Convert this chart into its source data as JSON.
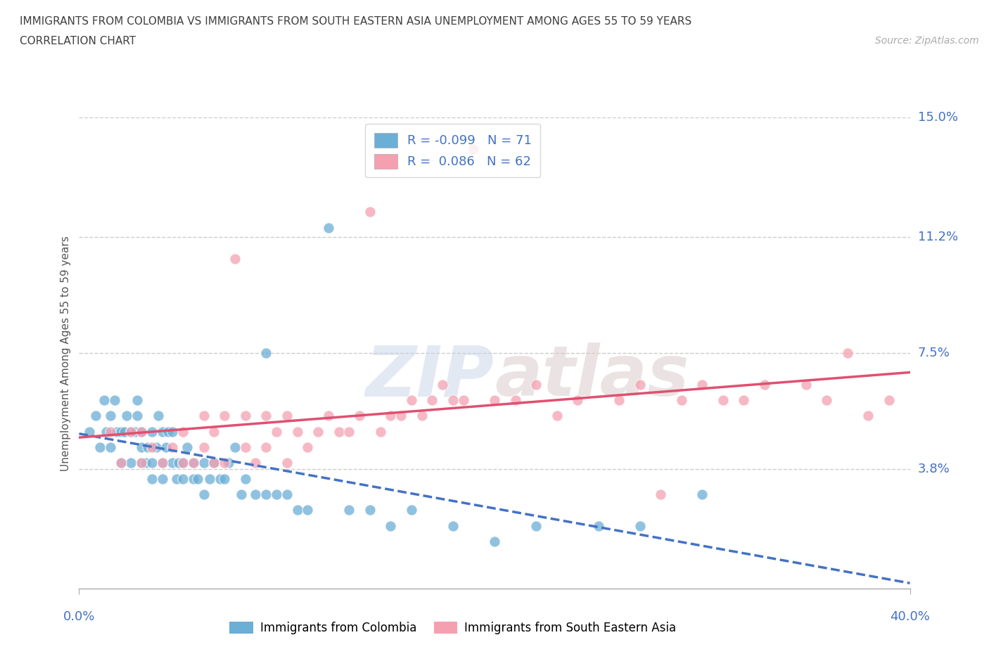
{
  "title_line1": "IMMIGRANTS FROM COLOMBIA VS IMMIGRANTS FROM SOUTH EASTERN ASIA UNEMPLOYMENT AMONG AGES 55 TO 59 YEARS",
  "title_line2": "CORRELATION CHART",
  "source": "Source: ZipAtlas.com",
  "ylabel": "Unemployment Among Ages 55 to 59 years",
  "colombia_color": "#6baed6",
  "colombia_line_color": "#4472c4",
  "seasia_color": "#f4a0b0",
  "seasia_line_color": "#e05070",
  "colombia_label": "Immigrants from Colombia",
  "seasia_label": "Immigrants from South Eastern Asia",
  "colombia_R": -0.099,
  "colombia_N": 71,
  "seasia_R": 0.086,
  "seasia_N": 62,
  "watermark": "ZIPAtlas",
  "xlim": [
    0.0,
    0.4
  ],
  "ylim": [
    0.0,
    0.15
  ],
  "ytick_positions": [
    0.038,
    0.075,
    0.112,
    0.15
  ],
  "ytick_labels": [
    "3.8%",
    "7.5%",
    "11.2%",
    "15.0%"
  ],
  "colombia_scatter_x": [
    0.005,
    0.008,
    0.01,
    0.012,
    0.013,
    0.015,
    0.015,
    0.017,
    0.018,
    0.02,
    0.02,
    0.022,
    0.023,
    0.025,
    0.025,
    0.027,
    0.028,
    0.028,
    0.03,
    0.03,
    0.03,
    0.032,
    0.033,
    0.035,
    0.035,
    0.035,
    0.037,
    0.038,
    0.04,
    0.04,
    0.04,
    0.042,
    0.043,
    0.045,
    0.045,
    0.047,
    0.048,
    0.05,
    0.05,
    0.052,
    0.055,
    0.055,
    0.057,
    0.06,
    0.06,
    0.063,
    0.065,
    0.068,
    0.07,
    0.072,
    0.075,
    0.078,
    0.08,
    0.085,
    0.09,
    0.09,
    0.095,
    0.1,
    0.105,
    0.11,
    0.12,
    0.13,
    0.14,
    0.15,
    0.16,
    0.18,
    0.2,
    0.22,
    0.25,
    0.27,
    0.3
  ],
  "colombia_scatter_y": [
    0.05,
    0.055,
    0.045,
    0.06,
    0.05,
    0.045,
    0.055,
    0.06,
    0.05,
    0.04,
    0.05,
    0.05,
    0.055,
    0.04,
    0.05,
    0.05,
    0.055,
    0.06,
    0.04,
    0.045,
    0.05,
    0.04,
    0.045,
    0.035,
    0.04,
    0.05,
    0.045,
    0.055,
    0.035,
    0.04,
    0.05,
    0.045,
    0.05,
    0.04,
    0.05,
    0.035,
    0.04,
    0.035,
    0.04,
    0.045,
    0.035,
    0.04,
    0.035,
    0.03,
    0.04,
    0.035,
    0.04,
    0.035,
    0.035,
    0.04,
    0.045,
    0.03,
    0.035,
    0.03,
    0.075,
    0.03,
    0.03,
    0.03,
    0.025,
    0.025,
    0.115,
    0.025,
    0.025,
    0.02,
    0.025,
    0.02,
    0.015,
    0.02,
    0.02,
    0.02,
    0.03
  ],
  "seasia_scatter_x": [
    0.015,
    0.02,
    0.025,
    0.03,
    0.03,
    0.035,
    0.04,
    0.045,
    0.05,
    0.05,
    0.055,
    0.06,
    0.06,
    0.065,
    0.065,
    0.07,
    0.07,
    0.075,
    0.08,
    0.08,
    0.085,
    0.09,
    0.09,
    0.095,
    0.1,
    0.1,
    0.105,
    0.11,
    0.115,
    0.12,
    0.125,
    0.13,
    0.135,
    0.14,
    0.145,
    0.15,
    0.155,
    0.16,
    0.165,
    0.17,
    0.175,
    0.18,
    0.185,
    0.19,
    0.2,
    0.21,
    0.22,
    0.23,
    0.24,
    0.26,
    0.27,
    0.28,
    0.29,
    0.3,
    0.31,
    0.32,
    0.33,
    0.35,
    0.36,
    0.37,
    0.38,
    0.39
  ],
  "seasia_scatter_y": [
    0.05,
    0.04,
    0.05,
    0.04,
    0.05,
    0.045,
    0.04,
    0.045,
    0.04,
    0.05,
    0.04,
    0.045,
    0.055,
    0.04,
    0.05,
    0.04,
    0.055,
    0.105,
    0.045,
    0.055,
    0.04,
    0.045,
    0.055,
    0.05,
    0.04,
    0.055,
    0.05,
    0.045,
    0.05,
    0.055,
    0.05,
    0.05,
    0.055,
    0.12,
    0.05,
    0.055,
    0.055,
    0.06,
    0.055,
    0.06,
    0.065,
    0.06,
    0.06,
    0.14,
    0.06,
    0.06,
    0.065,
    0.055,
    0.06,
    0.06,
    0.065,
    0.03,
    0.06,
    0.065,
    0.06,
    0.06,
    0.065,
    0.065,
    0.06,
    0.075,
    0.055,
    0.06
  ],
  "grid_color": "#cccccc",
  "background_color": "#ffffff",
  "title_color": "#404040",
  "axis_label_color": "#4472c4",
  "label_color": "#555555"
}
